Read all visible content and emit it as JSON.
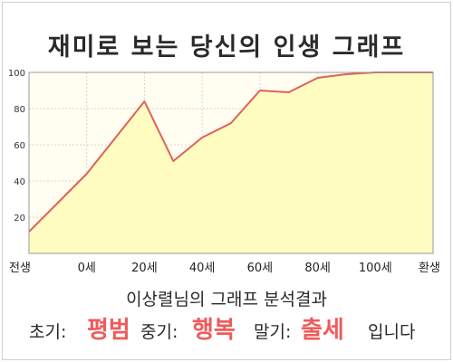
{
  "title": "재미로 보는 당신의 인생 그래프",
  "chart_data": {
    "type": "area",
    "title": "재미로 보는 당신의 인생 그래프",
    "x_ticks": [
      "전생",
      "0세",
      "20세",
      "40세",
      "60세",
      "80세",
      "100세",
      "환생"
    ],
    "y_ticks": [
      20,
      40,
      60,
      80,
      100
    ],
    "ylim": [
      0,
      100
    ],
    "grid": true,
    "colors": {
      "line": "#e0605e",
      "fill": "#fefcc0",
      "plot_bg": "#fffef0",
      "grid": "#d4d4d4"
    },
    "series": [
      {
        "x": [
          "전생",
          "",
          "0세",
          "",
          "20세",
          "",
          "40세",
          "",
          "60세",
          "",
          "80세",
          "",
          "100세",
          "",
          "환생"
        ],
        "values": [
          12,
          28,
          44,
          64,
          84,
          51,
          64,
          72,
          90,
          89,
          97,
          99,
          100,
          100,
          100
        ]
      }
    ]
  },
  "result": {
    "summary": "이상렬님의 그래프 분석결과",
    "early_label": "초기:",
    "early_value": "평범",
    "middle_label": "중기:",
    "middle_value": "행복",
    "late_label": "말기:",
    "late_value": "출세",
    "suffix": "입니다"
  }
}
